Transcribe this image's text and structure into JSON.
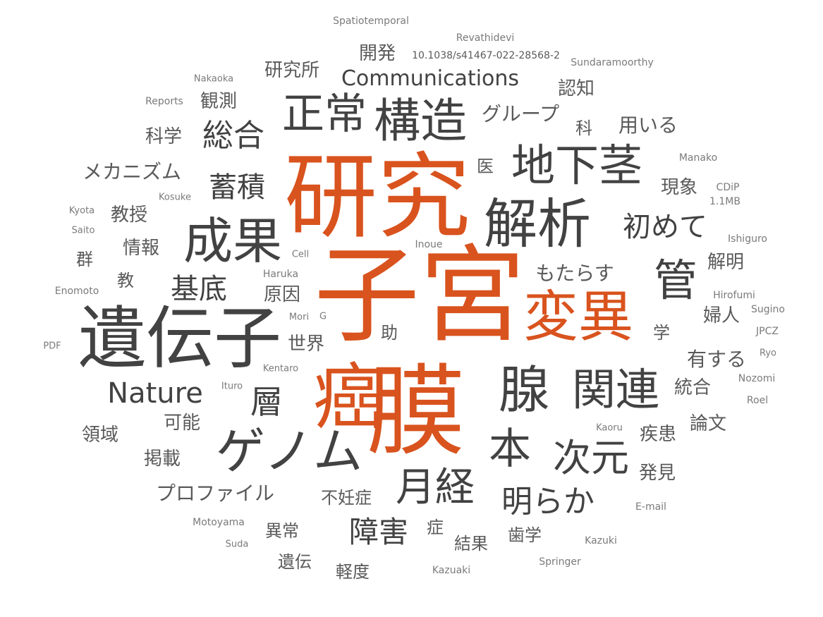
{
  "colors": {
    "orange": "#d9531e",
    "dark": "#424242",
    "mid": "#5a5a5a",
    "light": "#7a7a7a"
  },
  "words": [
    {
      "text": "子宮",
      "tone": "orange"
    },
    {
      "text": "膜",
      "tone": "orange"
    },
    {
      "text": "研究",
      "tone": "orange"
    },
    {
      "text": "癌",
      "tone": "orange"
    },
    {
      "text": "変異",
      "tone": "orange"
    },
    {
      "text": "遺伝子",
      "tone": "dark"
    },
    {
      "text": "解析",
      "tone": "dark"
    },
    {
      "text": "成果",
      "tone": "dark"
    },
    {
      "text": "地下茎",
      "tone": "dark"
    },
    {
      "text": "腺",
      "tone": "dark"
    },
    {
      "text": "関連",
      "tone": "dark"
    },
    {
      "text": "構造",
      "tone": "dark"
    },
    {
      "text": "ゲノム",
      "tone": "dark"
    },
    {
      "text": "正常",
      "tone": "dark"
    },
    {
      "text": "管",
      "tone": "dark"
    },
    {
      "text": "本",
      "tone": "dark"
    },
    {
      "text": "月経",
      "tone": "dark"
    },
    {
      "text": "次元",
      "tone": "dark"
    },
    {
      "text": "Nature",
      "tone": "dark"
    },
    {
      "text": "層",
      "tone": "dark"
    },
    {
      "text": "明らか",
      "tone": "dark"
    },
    {
      "text": "初めて",
      "tone": "dark"
    },
    {
      "text": "総合",
      "tone": "dark"
    },
    {
      "text": "蓄積",
      "tone": "dark"
    },
    {
      "text": "基底",
      "tone": "dark"
    },
    {
      "text": "障害",
      "tone": "dark"
    },
    {
      "text": "Communications",
      "tone": "dark"
    },
    {
      "text": "グループ",
      "tone": "mid"
    },
    {
      "text": "メカニズム",
      "tone": "mid"
    },
    {
      "text": "プロファイル",
      "tone": "mid"
    },
    {
      "text": "もたらす",
      "tone": "mid"
    },
    {
      "text": "用いる",
      "tone": "mid"
    },
    {
      "text": "研究所",
      "tone": "mid"
    },
    {
      "text": "開発",
      "tone": "mid"
    },
    {
      "text": "観測",
      "tone": "mid"
    },
    {
      "text": "認知",
      "tone": "mid"
    },
    {
      "text": "科学",
      "tone": "mid"
    },
    {
      "text": "科",
      "tone": "mid"
    },
    {
      "text": "医",
      "tone": "mid"
    },
    {
      "text": "現象",
      "tone": "mid"
    },
    {
      "text": "教授",
      "tone": "mid"
    },
    {
      "text": "情報",
      "tone": "mid"
    },
    {
      "text": "群",
      "tone": "mid"
    },
    {
      "text": "教",
      "tone": "mid"
    },
    {
      "text": "原因",
      "tone": "mid"
    },
    {
      "text": "解明",
      "tone": "mid"
    },
    {
      "text": "婦人",
      "tone": "mid"
    },
    {
      "text": "学",
      "tone": "mid"
    },
    {
      "text": "有する",
      "tone": "mid"
    },
    {
      "text": "統合",
      "tone": "mid"
    },
    {
      "text": "論文",
      "tone": "mid"
    },
    {
      "text": "疾患",
      "tone": "mid"
    },
    {
      "text": "発見",
      "tone": "mid"
    },
    {
      "text": "世界",
      "tone": "mid"
    },
    {
      "text": "助",
      "tone": "mid"
    },
    {
      "text": "可能",
      "tone": "mid"
    },
    {
      "text": "領域",
      "tone": "mid"
    },
    {
      "text": "掲載",
      "tone": "mid"
    },
    {
      "text": "不妊症",
      "tone": "mid"
    },
    {
      "text": "異常",
      "tone": "mid"
    },
    {
      "text": "症",
      "tone": "mid"
    },
    {
      "text": "歯学",
      "tone": "mid"
    },
    {
      "text": "結果",
      "tone": "mid"
    },
    {
      "text": "遺伝",
      "tone": "mid"
    },
    {
      "text": "軽度",
      "tone": "mid"
    },
    {
      "text": "10.1038/s41467-022-28568-2",
      "tone": "mid"
    },
    {
      "text": "Spatiotemporal",
      "tone": "light"
    },
    {
      "text": "Revathidevi",
      "tone": "light"
    },
    {
      "text": "Sundaramoorthy",
      "tone": "light"
    },
    {
      "text": "Nakaoka",
      "tone": "light"
    },
    {
      "text": "Reports",
      "tone": "light"
    },
    {
      "text": "Manako",
      "tone": "light"
    },
    {
      "text": "CDiP",
      "tone": "light"
    },
    {
      "text": "1.1MB",
      "tone": "light"
    },
    {
      "text": "Kosuke",
      "tone": "light"
    },
    {
      "text": "Kyota",
      "tone": "light"
    },
    {
      "text": "Saito",
      "tone": "light"
    },
    {
      "text": "Ishiguro",
      "tone": "light"
    },
    {
      "text": "Inoue",
      "tone": "light"
    },
    {
      "text": "Cell",
      "tone": "light"
    },
    {
      "text": "Haruka",
      "tone": "light"
    },
    {
      "text": "Enomoto",
      "tone": "light"
    },
    {
      "text": "Hirofumi",
      "tone": "light"
    },
    {
      "text": "Sugino",
      "tone": "light"
    },
    {
      "text": "Mori",
      "tone": "light"
    },
    {
      "text": "G",
      "tone": "light"
    },
    {
      "text": "JPCZ",
      "tone": "light"
    },
    {
      "text": "PDF",
      "tone": "light"
    },
    {
      "text": "Ryo",
      "tone": "light"
    },
    {
      "text": "Kentaro",
      "tone": "light"
    },
    {
      "text": "Nozomi",
      "tone": "light"
    },
    {
      "text": "Ituro",
      "tone": "light"
    },
    {
      "text": "Roel",
      "tone": "light"
    },
    {
      "text": "Kaoru",
      "tone": "light"
    },
    {
      "text": "E-mail",
      "tone": "light"
    },
    {
      "text": "Motoyama",
      "tone": "light"
    },
    {
      "text": "Suda",
      "tone": "light"
    },
    {
      "text": "Kazuki",
      "tone": "light"
    },
    {
      "text": "Springer",
      "tone": "light"
    },
    {
      "text": "Kazuaki",
      "tone": "light"
    }
  ]
}
